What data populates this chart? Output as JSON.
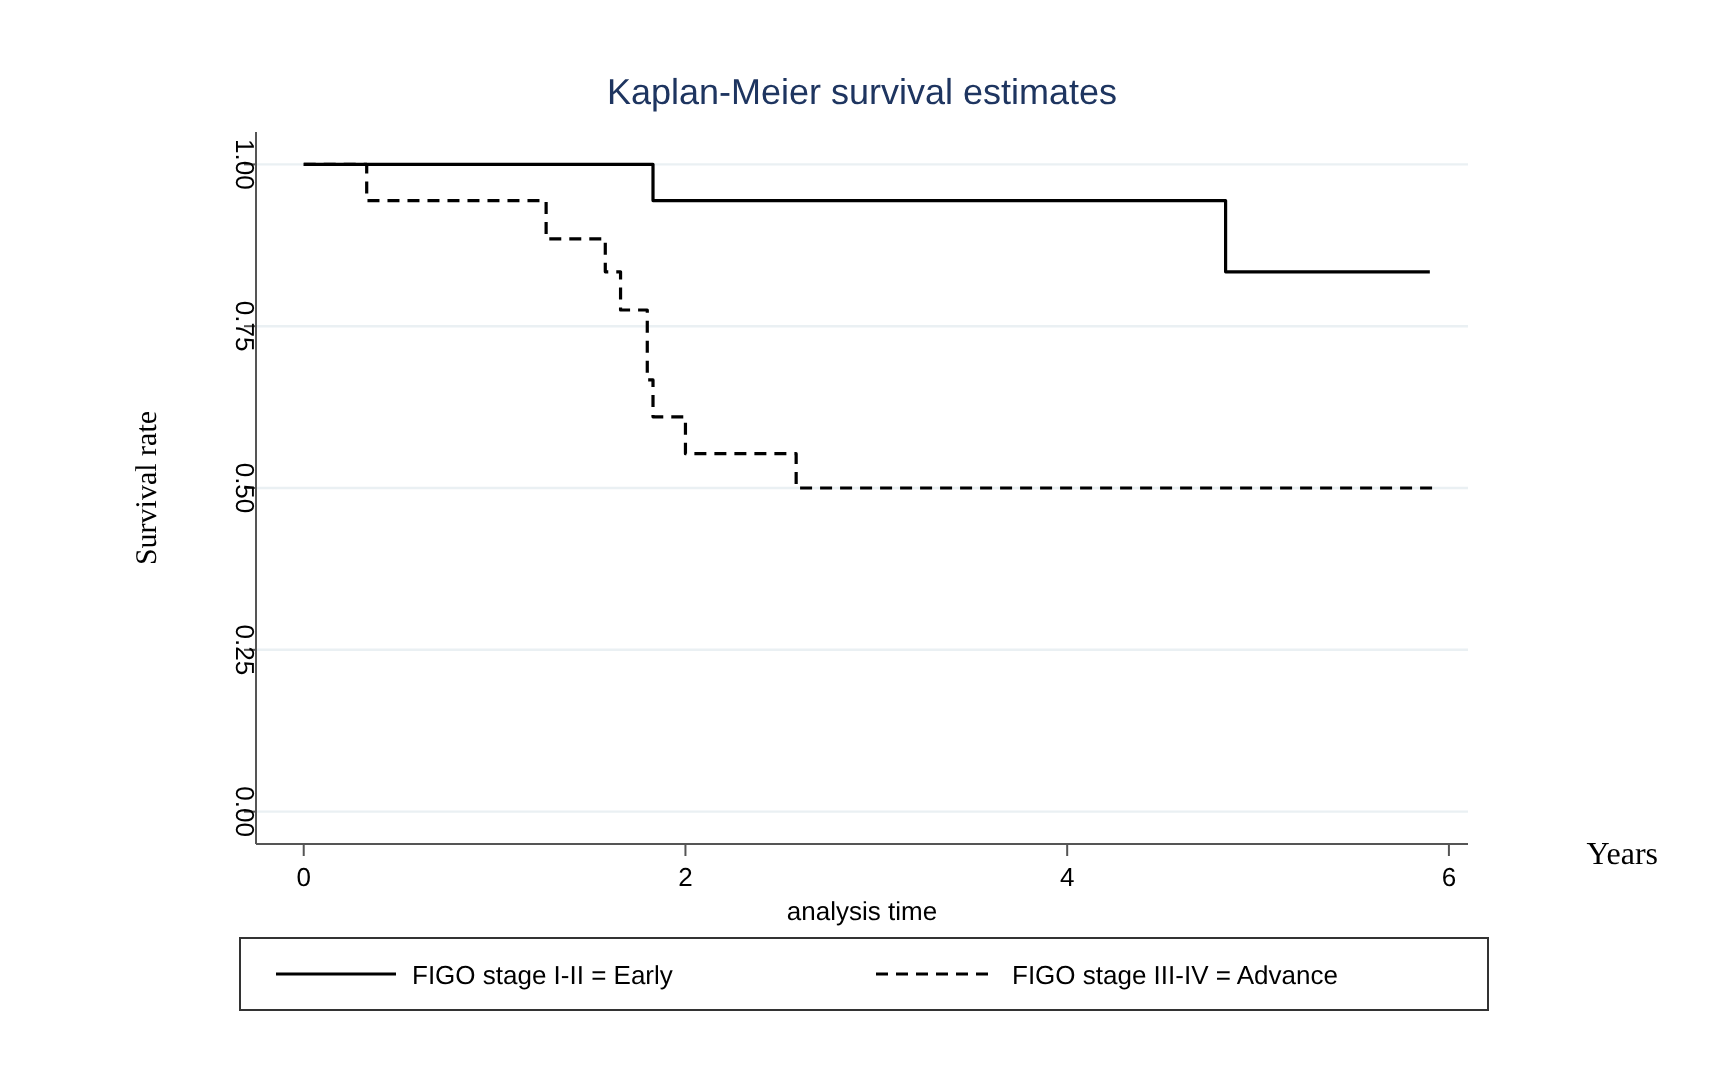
{
  "chart_data": {
    "type": "step",
    "title": "Kaplan-Meier survival estimates",
    "xlabel": "analysis time",
    "ylabel": "Survival rate",
    "series": [
      {
        "name": "FIGO stage I-II = Early",
        "color": "#000000",
        "line_style": "solid",
        "x": [
          0,
          1.83,
          4.83,
          5.9
        ],
        "values": [
          1.0,
          0.944,
          0.834,
          0.834
        ]
      },
      {
        "name": "FIGO stage III-IV = Advance",
        "color": "#000000",
        "line_style": "dashed",
        "x": [
          0,
          0.33,
          1.27,
          1.58,
          1.66,
          1.8,
          1.83,
          2.0,
          2.58,
          5.92
        ],
        "values": [
          1.0,
          0.944,
          0.885,
          0.834,
          0.775,
          0.667,
          0.61,
          0.553,
          0.5,
          0.5
        ]
      }
    ],
    "xlim": [
      -0.25,
      6.1
    ],
    "xticks": [
      0,
      2,
      4,
      6
    ],
    "ylim": [
      -0.05,
      1.05
    ],
    "yticks": [
      {
        "value": 0,
        "label": "0.00"
      },
      {
        "value": 0.25,
        "label": "0.25"
      },
      {
        "value": 0.5,
        "label": "0.50"
      },
      {
        "value": 0.75,
        "label": "0.75"
      },
      {
        "value": 1,
        "label": "1.00"
      }
    ],
    "grid": "y",
    "legend": "bottom",
    "annotations": [
      "Years"
    ]
  }
}
